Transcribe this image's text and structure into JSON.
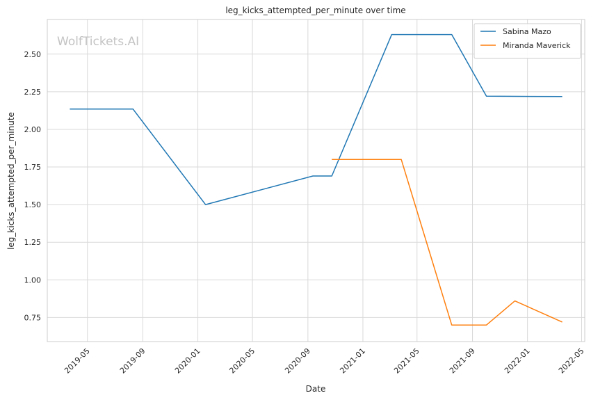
{
  "chart_data": {
    "type": "line",
    "title": "leg_kicks_attempted_per_minute over time",
    "xlabel": "Date",
    "ylabel": "leg_kicks_attempted_per_minute",
    "watermark": "WolfTickets.AI",
    "xlim": [
      "2019-02-01",
      "2022-05-08"
    ],
    "ylim": [
      0.59,
      2.73
    ],
    "x_ticks": [
      {
        "date": "2019-05-01",
        "label": "2019-05"
      },
      {
        "date": "2019-09-01",
        "label": "2019-09"
      },
      {
        "date": "2020-01-01",
        "label": "2020-01"
      },
      {
        "date": "2020-05-01",
        "label": "2020-05"
      },
      {
        "date": "2020-09-01",
        "label": "2020-09"
      },
      {
        "date": "2021-01-01",
        "label": "2021-01"
      },
      {
        "date": "2021-05-01",
        "label": "2021-05"
      },
      {
        "date": "2021-09-01",
        "label": "2021-09"
      },
      {
        "date": "2022-01-01",
        "label": "2022-01"
      },
      {
        "date": "2022-05-01",
        "label": "2022-05"
      }
    ],
    "y_ticks": [
      0.75,
      1.0,
      1.25,
      1.5,
      1.75,
      2.0,
      2.25,
      2.5
    ],
    "grid": true,
    "legend_position": "top-right",
    "series": [
      {
        "name": "Sabina Mazo",
        "color": "#1f77b4",
        "points": [
          {
            "x": "2019-03-23",
            "y": 2.135
          },
          {
            "x": "2019-08-10",
            "y": 2.135
          },
          {
            "x": "2020-01-18",
            "y": 1.5
          },
          {
            "x": "2020-09-12",
            "y": 1.69
          },
          {
            "x": "2020-10-24",
            "y": 1.69
          },
          {
            "x": "2021-03-06",
            "y": 2.63
          },
          {
            "x": "2021-07-17",
            "y": 2.63
          },
          {
            "x": "2021-10-02",
            "y": 2.22
          },
          {
            "x": "2022-03-19",
            "y": 2.218
          }
        ]
      },
      {
        "name": "Miranda Maverick",
        "color": "#ff7f0e",
        "points": [
          {
            "x": "2020-10-24",
            "y": 1.8
          },
          {
            "x": "2021-03-27",
            "y": 1.8
          },
          {
            "x": "2021-07-17",
            "y": 0.7
          },
          {
            "x": "2021-10-02",
            "y": 0.7
          },
          {
            "x": "2021-12-04",
            "y": 0.86
          },
          {
            "x": "2022-03-19",
            "y": 0.72
          }
        ]
      }
    ]
  }
}
